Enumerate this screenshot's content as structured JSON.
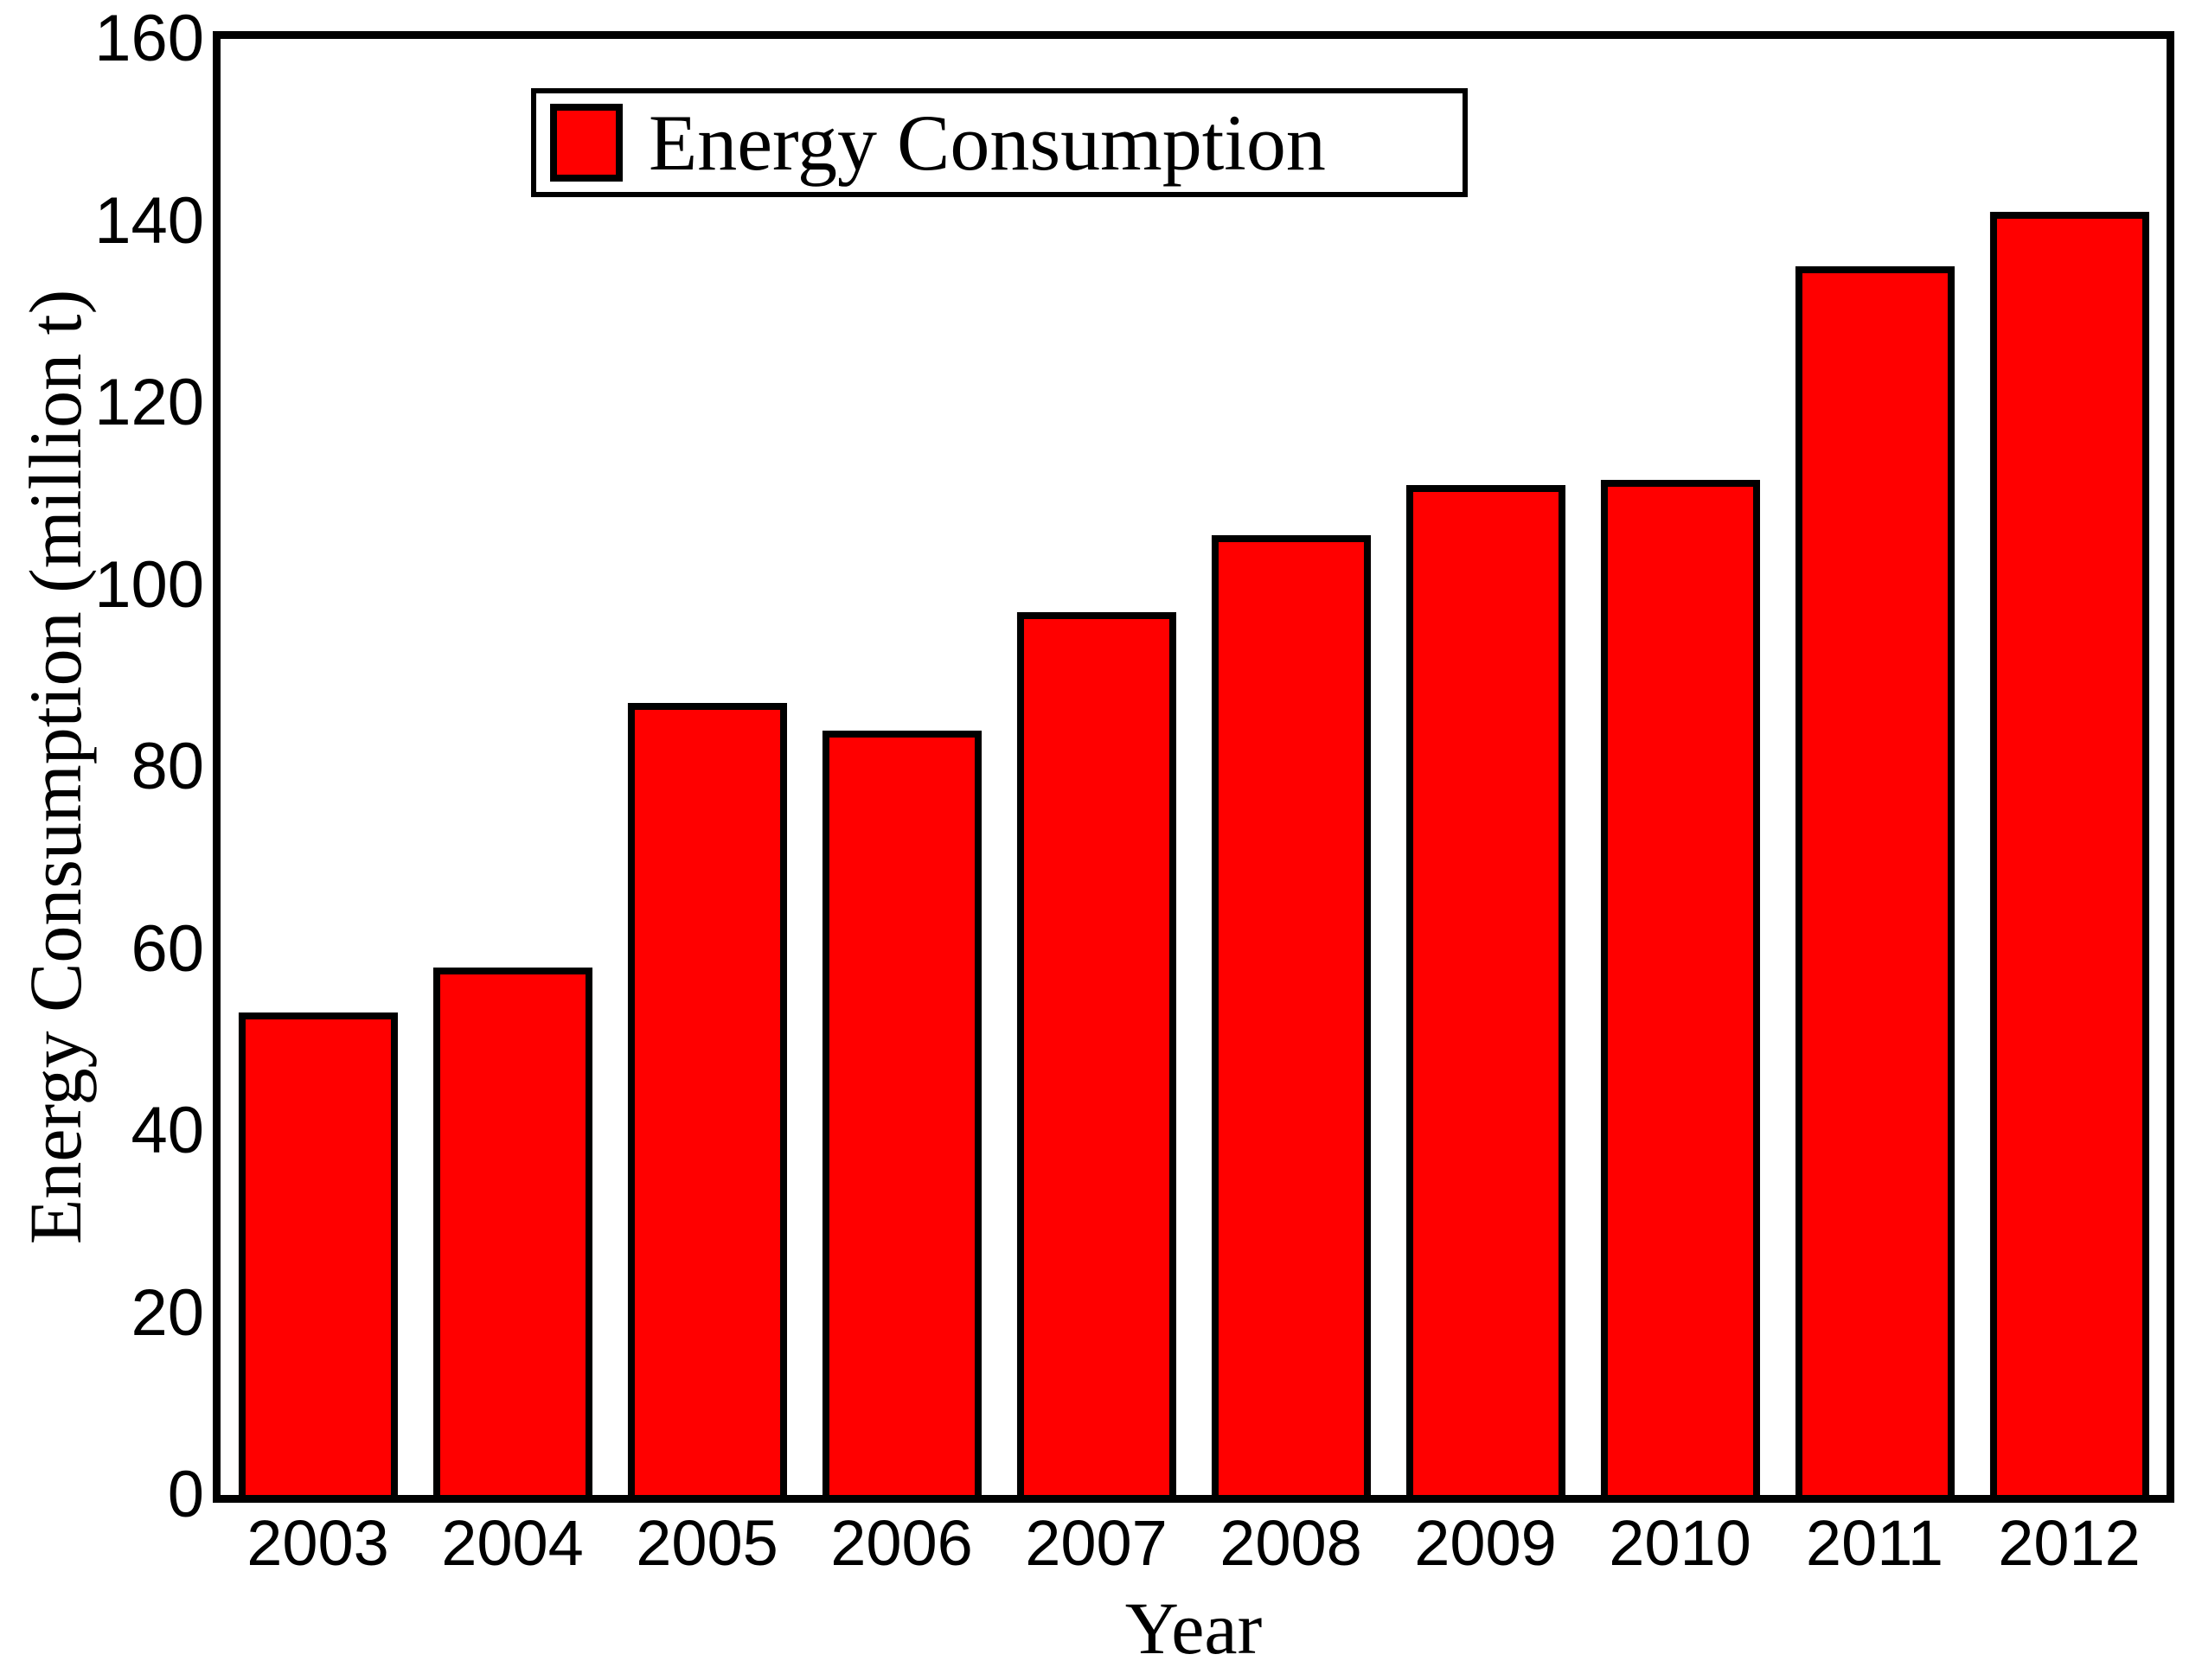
{
  "chart_data": {
    "type": "bar",
    "title": "",
    "categories": [
      "2003",
      "2004",
      "2005",
      "2006",
      "2007",
      "2008",
      "2009",
      "2010",
      "2011",
      "2012"
    ],
    "values": [
      53,
      58,
      87,
      84,
      97,
      105.5,
      111,
      111.5,
      135,
      141
    ],
    "xlabel": "Year",
    "ylabel": "Energy Consumption (million t)",
    "ylim": [
      0,
      160
    ],
    "yticks": [
      0,
      20,
      40,
      60,
      80,
      100,
      120,
      140,
      160
    ],
    "grid": false,
    "legend": {
      "label": "Energy Consumption",
      "position": "top-center-inside"
    },
    "colors": {
      "bar_fill": "#FF0000",
      "bar_border": "#000000",
      "axis": "#000000",
      "text": "#000000",
      "background": "#FFFFFF"
    }
  }
}
